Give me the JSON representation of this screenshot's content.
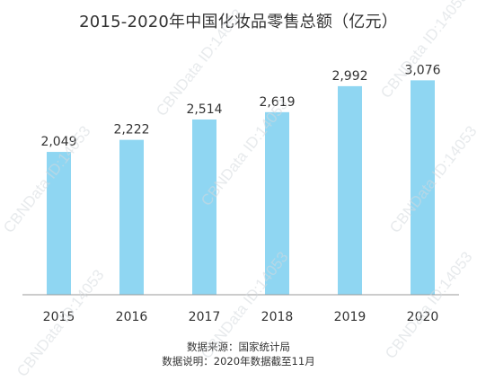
{
  "chart_data": {
    "type": "bar",
    "title": "2015-2020年中国化妆品零售总额（亿元）",
    "categories": [
      "2015",
      "2016",
      "2017",
      "2018",
      "2019",
      "2020"
    ],
    "values": [
      2049,
      2222,
      2514,
      2619,
      2992,
      3076
    ],
    "value_labels": [
      "2,049",
      "2,222",
      "2,514",
      "2,619",
      "2,992",
      "3,076"
    ],
    "ylim": [
      0,
      3300
    ],
    "bar_color": "#8fd6f2",
    "axis_color": "#999999",
    "grid": false,
    "legend": "none"
  },
  "footnotes": {
    "source": "数据来源：国家统计局",
    "note": "数据说明：2020年数据截至11月"
  },
  "watermark": {
    "text": "CBNData ID:14053",
    "color": "#d4d9de"
  }
}
